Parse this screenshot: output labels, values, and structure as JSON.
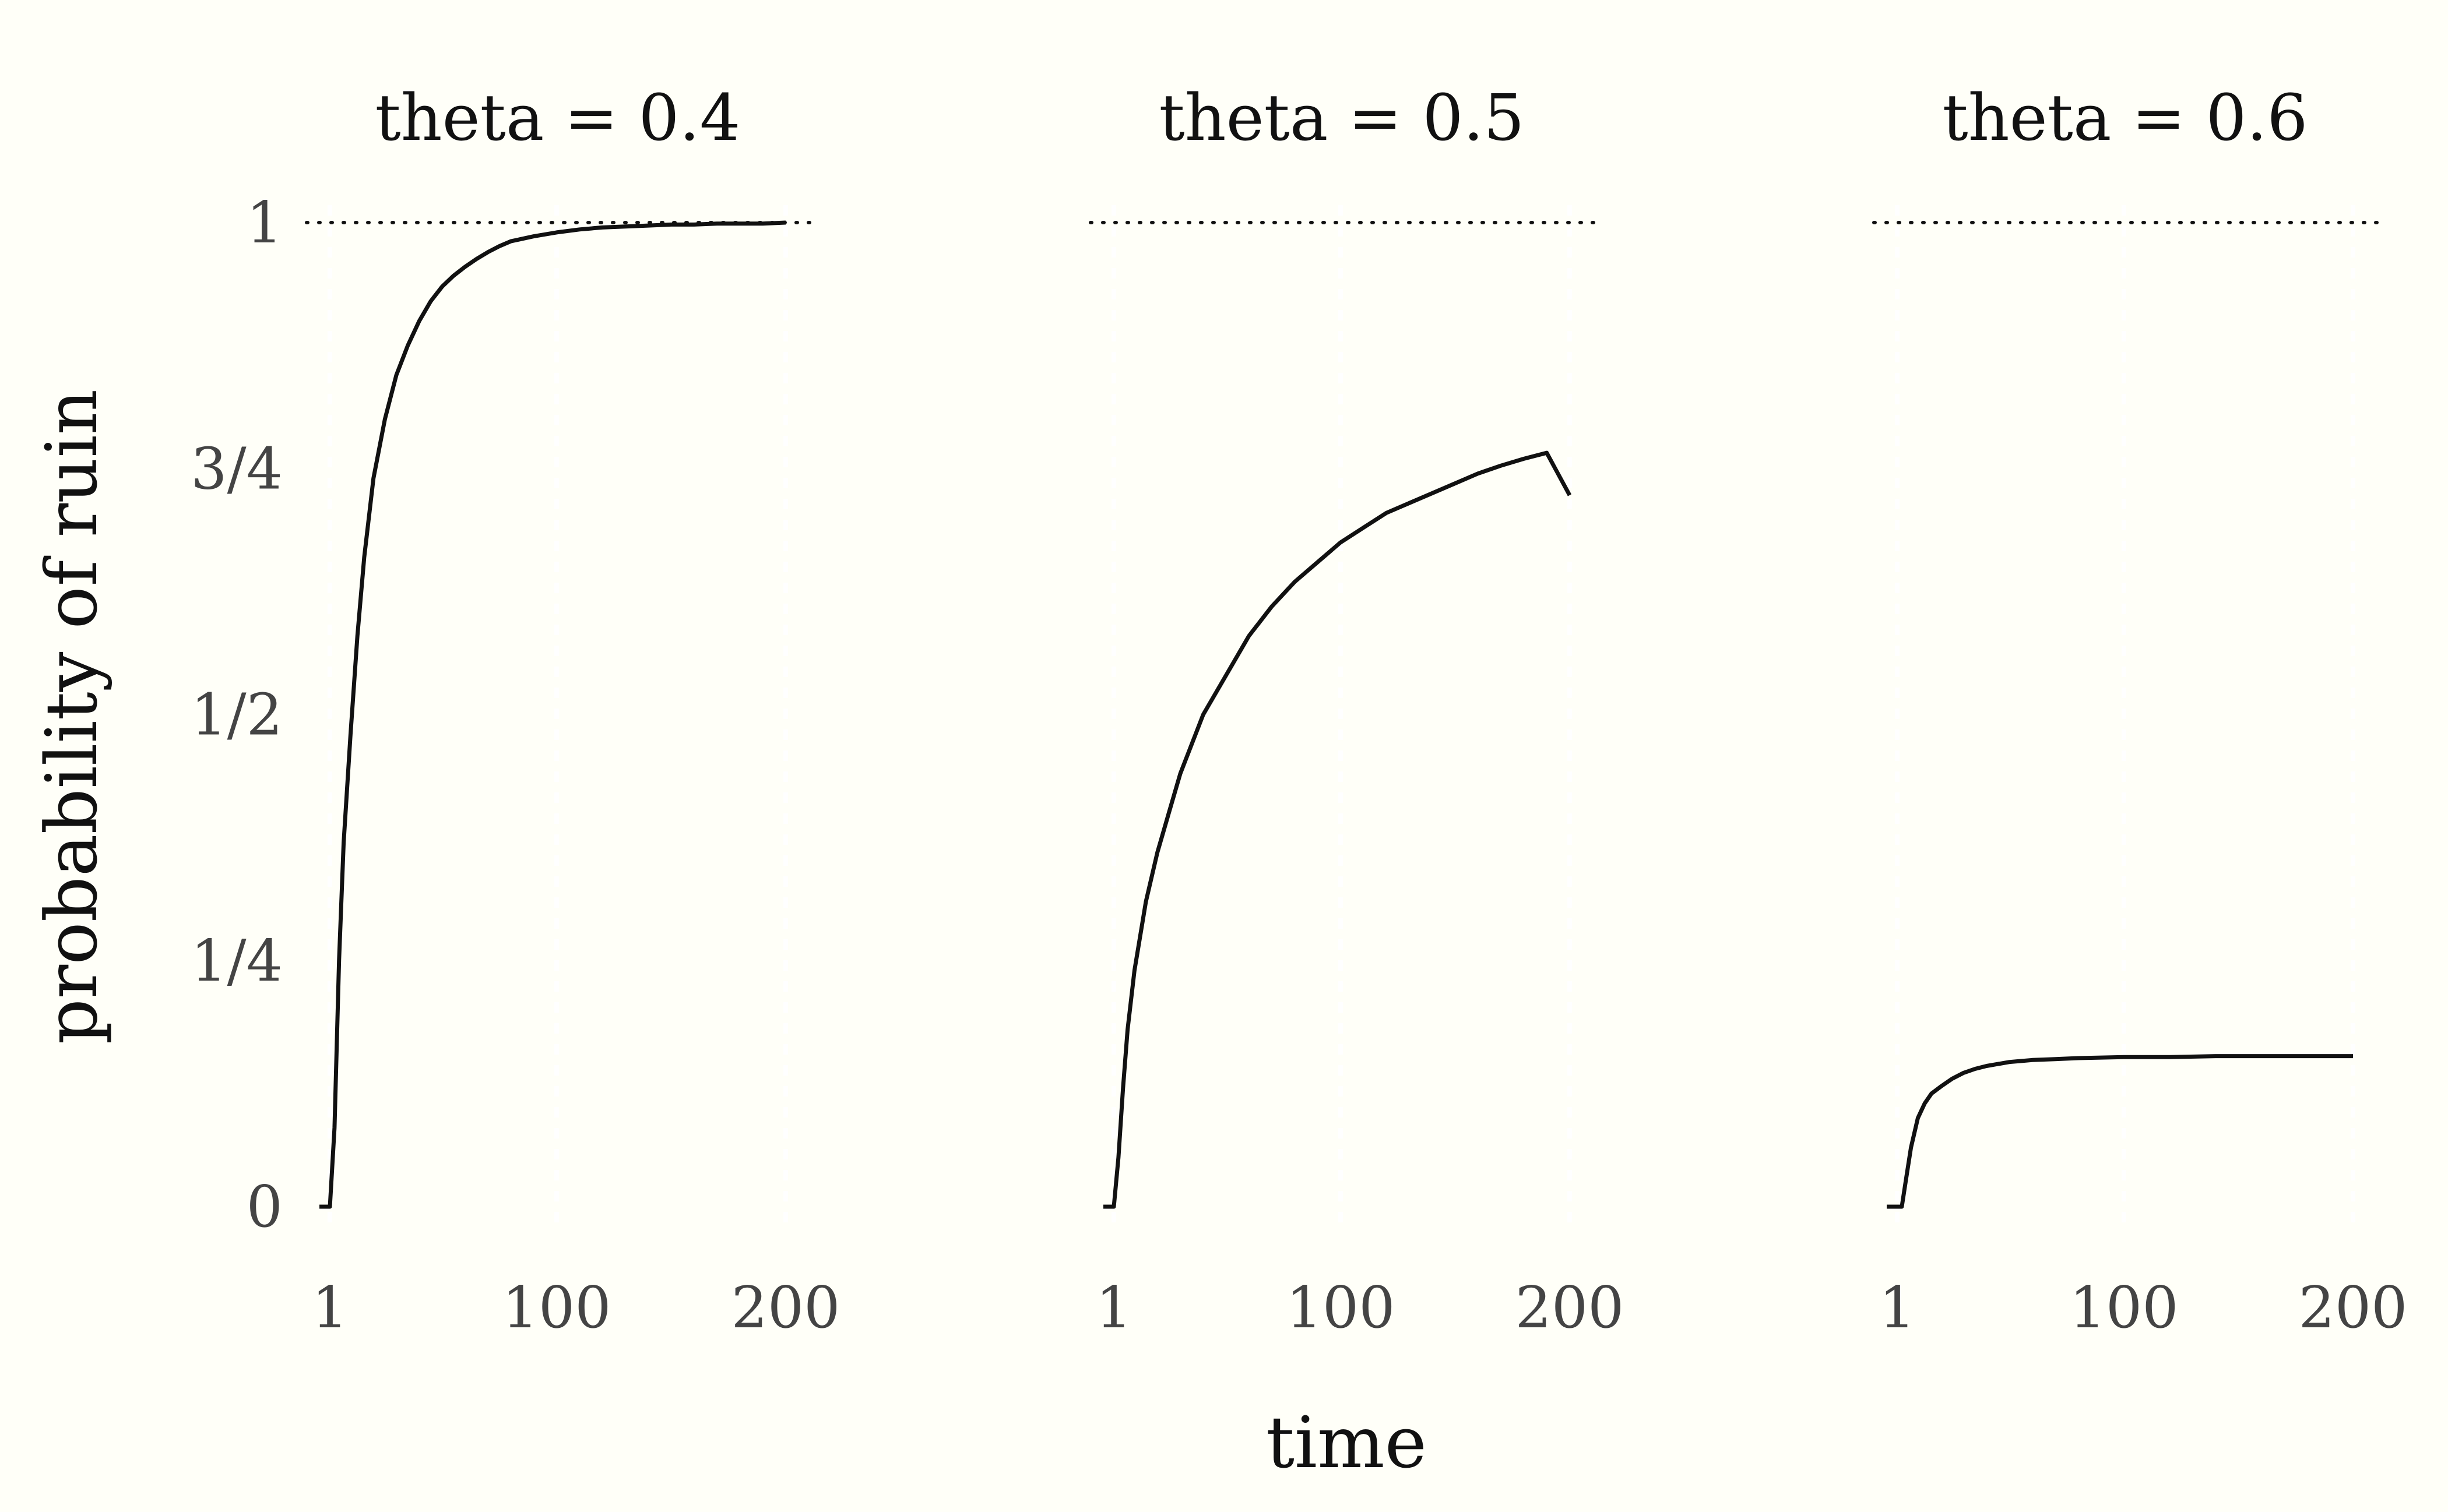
{
  "chart_data": {
    "type": "line",
    "facet_variable": "theta",
    "xlabel": "time",
    "ylabel": "probability of ruin",
    "xlim": [
      1,
      200
    ],
    "ylim": [
      0,
      1
    ],
    "x_ticks": [
      1,
      100,
      200
    ],
    "x_tick_labels": [
      "1",
      "100",
      "200"
    ],
    "y_ticks": [
      0,
      0.25,
      0.5,
      0.75,
      1
    ],
    "y_tick_labels": [
      "0",
      "1/4",
      "1/2",
      "3/4",
      "1"
    ],
    "reference_line": {
      "y": 1,
      "style": "dotted"
    },
    "legend": "none",
    "grid": "faint vertical gridlines",
    "colors": {
      "background": "#fffff8",
      "line": "#111111",
      "tick_text": "#444444"
    },
    "panels": [
      {
        "title": "theta =  0.4",
        "series": [
          {
            "x": [
              1,
              3,
              5,
              7,
              10,
              13,
              16,
              20,
              25,
              30,
              35,
              40,
              45,
              50,
              55,
              60,
              65,
              70,
              75,
              80,
              90,
              100,
              110,
              120,
              130,
              140,
              150,
              160,
              170,
              180,
              190,
              200
            ],
            "y": [
              0,
              0.08,
              0.25,
              0.37,
              0.48,
              0.58,
              0.66,
              0.74,
              0.8,
              0.845,
              0.875,
              0.9,
              0.92,
              0.935,
              0.946,
              0.955,
              0.963,
              0.97,
              0.976,
              0.981,
              0.986,
              0.99,
              0.993,
              0.995,
              0.996,
              0.997,
              0.998,
              0.998,
              0.999,
              0.999,
              0.999,
              1
            ]
          }
        ]
      },
      {
        "title": "theta =  0.5",
        "series": [
          {
            "x": [
              1,
              3,
              5,
              7,
              10,
              15,
              20,
              25,
              30,
              40,
              50,
              60,
              70,
              80,
              90,
              100,
              110,
              120,
              130,
              140,
              150,
              160,
              170,
              180,
              190,
              200
            ],
            "y": [
              0,
              0.05,
              0.12,
              0.18,
              0.24,
              0.31,
              0.36,
              0.4,
              0.44,
              0.5,
              0.54,
              0.58,
              0.61,
              0.635,
              0.655,
              0.675,
              0.69,
              0.705,
              0.715,
              0.725,
              0.735,
              0.745,
              0.753,
              0.76,
              0.766,
              0.723
            ]
          }
        ]
      },
      {
        "title": "theta =  0.6",
        "series": [
          {
            "x": [
              1,
              3,
              5,
              7,
              10,
              13,
              16,
              20,
              25,
              30,
              35,
              40,
              45,
              50,
              55,
              60,
              70,
              80,
              100,
              120,
              140,
              160,
              180,
              200
            ],
            "y": [
              0,
              0,
              0.03,
              0.06,
              0.09,
              0.105,
              0.115,
              0.122,
              0.13,
              0.136,
              0.14,
              0.143,
              0.145,
              0.147,
              0.148,
              0.149,
              0.15,
              0.151,
              0.152,
              0.152,
              0.153,
              0.153,
              0.153,
              0.153
            ]
          }
        ]
      }
    ]
  }
}
